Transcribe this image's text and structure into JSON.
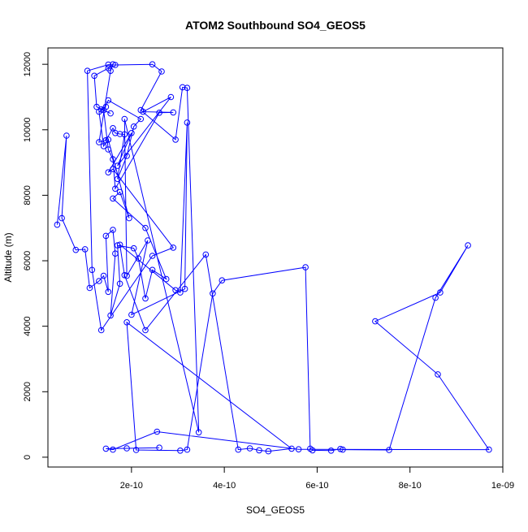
{
  "chart_data": {
    "type": "scatter",
    "title": "ATOM2 Southbound SO4_GEOS5",
    "xlabel": "SO4_GEOS5",
    "ylabel": "Altitude (m)",
    "xlim": [
      2e-11,
      1e-09
    ],
    "ylim": [
      -300,
      12500
    ],
    "x_tick_values": [
      2e-10,
      4e-10,
      6e-10,
      8e-10,
      1e-09
    ],
    "x_tick_labels": [
      "2e-10",
      "4e-10",
      "6e-10",
      "8e-10",
      "1e-09"
    ],
    "y_tick_values": [
      0,
      2000,
      4000,
      6000,
      8000,
      10000,
      12000
    ],
    "y_tick_labels": [
      "0",
      "2000",
      "4000",
      "6000",
      "8000",
      "10000",
      "12000"
    ],
    "connected": true,
    "marker": "open-circle",
    "series_color": "#0000ff",
    "series": [
      {
        "x": [
          4e-11,
          6e-11,
          5e-11,
          8e-11,
          1e-10,
          1.1e-10,
          1.3e-10,
          1.4e-10,
          1.5e-10,
          1.45e-10,
          1.6e-10,
          1.65e-10,
          1.55e-10,
          1.75e-10,
          1.7e-10,
          2.05e-10,
          2.15e-10,
          2.3e-10,
          2.45e-10,
          2.75e-10,
          2.3e-10,
          1.6e-10,
          1.75e-10,
          1.95e-10,
          1.5e-10,
          1.4e-10,
          1.3e-10,
          1.45e-10,
          1.35e-10,
          1.55e-10,
          1.25e-10,
          1.2e-10,
          1.5e-10,
          1.6e-10,
          1.55e-10,
          1.3e-10,
          1.45e-10,
          1.6e-10,
          1.65e-10,
          1.75e-10,
          1.85e-10,
          1.7e-10,
          1.9e-10,
          2.05e-10,
          2.2e-10,
          1.5e-10,
          1.4e-10,
          1.5e-10,
          1.6e-10,
          1.65e-10,
          2.6e-10,
          2.9e-10,
          2.25e-10,
          2.85e-10,
          1.7e-10,
          2e-10,
          1.5e-10,
          1.6e-10,
          2.9e-10,
          2.45e-10,
          1.35e-10,
          1.15e-10,
          1.05e-10,
          1.5e-10,
          1.65e-10,
          2.45e-10,
          2.65e-10,
          2.2e-10,
          2.95e-10,
          3.1e-10,
          3.2e-10,
          3.45e-10,
          1.85e-10,
          1.9e-10,
          2.35e-10,
          2e-10,
          3.15e-10,
          3.2e-10,
          3.05e-10,
          2.95e-10,
          1.75e-10,
          1.85e-10,
          2.3e-10,
          3.6e-10,
          4.3e-10,
          4.55e-10,
          4.75e-10,
          4.95e-10,
          5.45e-10,
          1.9e-10,
          2.1e-10,
          3.05e-10,
          3.2e-10,
          3.75e-10,
          3.95e-10,
          5.75e-10,
          5.85e-10,
          5.9e-10,
          6.3e-10,
          6.5e-10,
          6.55e-10,
          7.55e-10,
          8.55e-10,
          9.25e-10,
          8.65e-10,
          7.25e-10,
          8.6e-10,
          9.7e-10,
          5.6e-10,
          2.55e-10,
          1.6e-10,
          1.45e-10,
          1.9e-10,
          2.6e-10
        ],
        "y": [
          7100,
          9820,
          7300,
          6330,
          6350,
          5170,
          5380,
          5540,
          5050,
          6760,
          6940,
          6220,
          4330,
          5300,
          6470,
          6380,
          6070,
          4850,
          5720,
          5440,
          7000,
          7900,
          8100,
          7300,
          9700,
          9500,
          10550,
          10700,
          10620,
          10500,
          10700,
          11650,
          11880,
          12000,
          11800,
          9620,
          9680,
          10050,
          9900,
          9870,
          9860,
          8500,
          9200,
          10100,
          10330,
          10900,
          10600,
          9400,
          9100,
          8200,
          10520,
          10530,
          10550,
          11000,
          8900,
          9900,
          8700,
          8800,
          6400,
          6150,
          3880,
          5720,
          11800,
          11990,
          11980,
          12000,
          11780,
          10600,
          9700,
          11300,
          11280,
          760,
          10330,
          5540,
          6620,
          4350,
          5140,
          10220,
          5030,
          5100,
          6490,
          5560,
          3880,
          6190,
          230,
          270,
          210,
          180,
          260,
          4120,
          220,
          200,
          230,
          5000,
          5400,
          5800,
          260,
          210,
          200,
          250,
          230,
          220,
          4870,
          6470,
          5030,
          4150,
          2530,
          230,
          240,
          780,
          230,
          260,
          270,
          290
        ]
      }
    ]
  }
}
